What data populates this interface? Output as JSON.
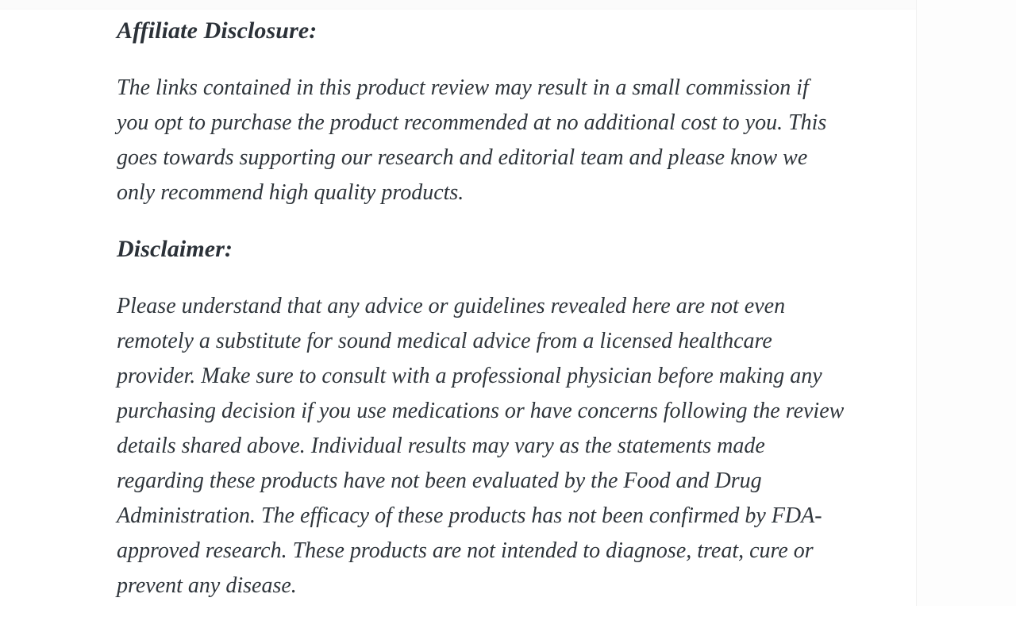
{
  "page": {
    "background_color": "#ffffff",
    "text_color": "#2f353b"
  },
  "article": {
    "sections": [
      {
        "heading": "Affiliate Disclosure:",
        "paragraph_lines": [
          "The links contained in this product review may result in a small commission if",
          "you opt to purchase the product recommended at no additional cost to you. This",
          "goes towards supporting our research and editorial team and please know we",
          "only recommend high quality products."
        ]
      },
      {
        "heading": "Disclaimer:",
        "paragraph_lines": [
          "Please understand that any advice or guidelines revealed here are not even",
          "remotely a substitute for sound medical advice from a licensed healthcare",
          "provider. Make sure to consult with a professional physician before making any",
          "purchasing decision if you use medications or have concerns following the review",
          "details shared above. Individual results may vary as the statements made",
          "regarding these products have not been evaluated by the Food and Drug",
          "Administration. The efficacy of these products has not been confirmed by FDA-",
          "approved research. These products are not intended to diagnose, treat, cure or",
          "prevent any disease."
        ]
      }
    ]
  }
}
